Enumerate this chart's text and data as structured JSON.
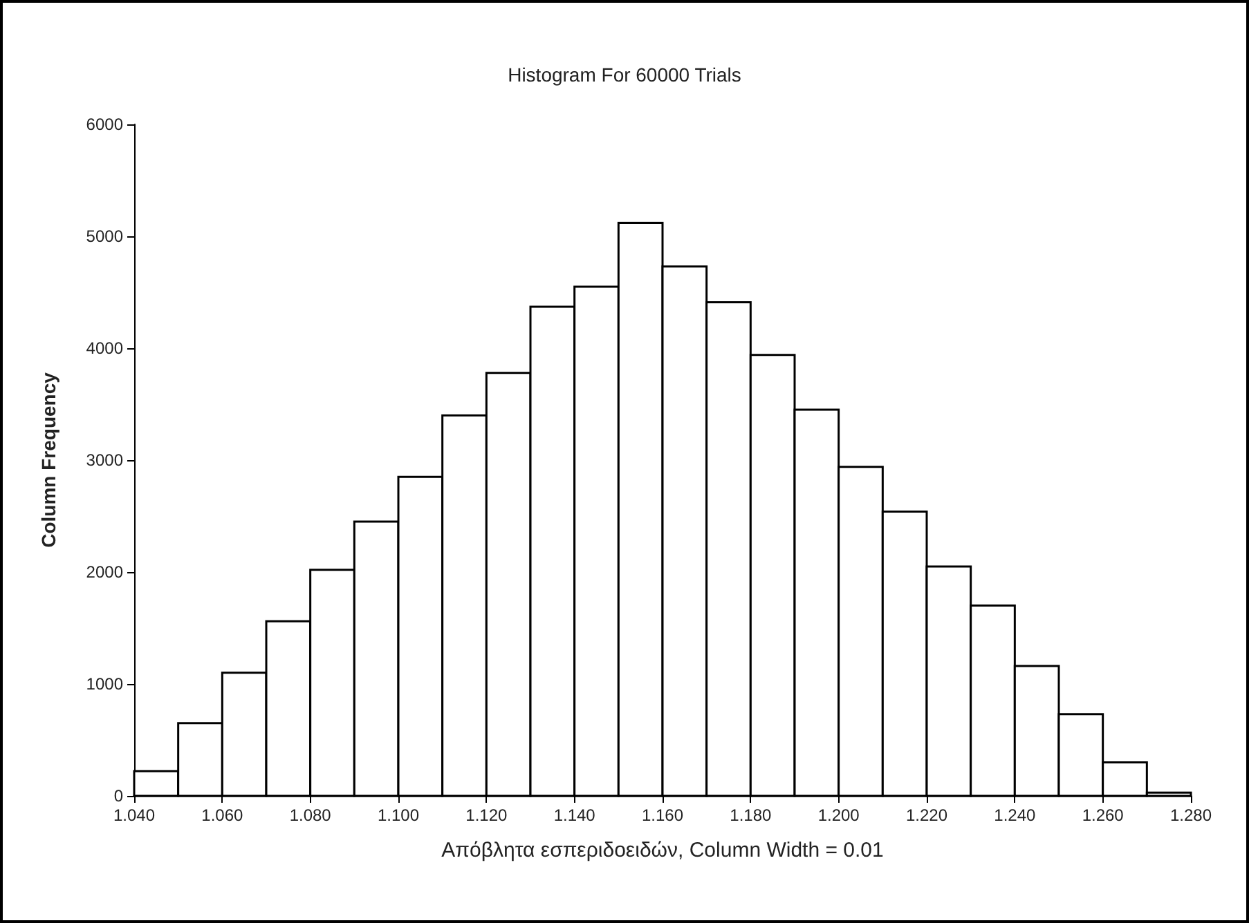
{
  "chart_data": {
    "type": "histogram",
    "title": "Histogram For 60000 Trials",
    "xlabel": "Απόβλητα εσπεριδοειδών, Column Width = 0.01",
    "ylabel": "Column Frequency",
    "bins": [
      1.04,
      1.05,
      1.06,
      1.07,
      1.08,
      1.09,
      1.1,
      1.11,
      1.12,
      1.13,
      1.14,
      1.15,
      1.16,
      1.17,
      1.18,
      1.19,
      1.2,
      1.21,
      1.22,
      1.23,
      1.24,
      1.25,
      1.26,
      1.27,
      1.28
    ],
    "values": [
      220,
      650,
      1100,
      1560,
      2020,
      2450,
      2850,
      3400,
      3780,
      4370,
      4550,
      5120,
      4730,
      4410,
      3940,
      3450,
      2940,
      2540,
      2050,
      1700,
      1160,
      730,
      300,
      30
    ],
    "color": "#ffffff",
    "xlim": [
      1.04,
      1.28
    ],
    "xticks": [
      {
        "value": 1.04,
        "label": "1.040"
      },
      {
        "value": 1.06,
        "label": "1.060"
      },
      {
        "value": 1.08,
        "label": "1.080"
      },
      {
        "value": 1.1,
        "label": "1.100"
      },
      {
        "value": 1.12,
        "label": "1.120"
      },
      {
        "value": 1.14,
        "label": "1.140"
      },
      {
        "value": 1.16,
        "label": "1.160"
      },
      {
        "value": 1.18,
        "label": "1.180"
      },
      {
        "value": 1.2,
        "label": "1.200"
      },
      {
        "value": 1.22,
        "label": "1.220"
      },
      {
        "value": 1.24,
        "label": "1.240"
      },
      {
        "value": 1.26,
        "label": "1.260"
      },
      {
        "value": 1.28,
        "label": "1.280"
      }
    ],
    "ylim": [
      0,
      6000
    ],
    "yticks": [
      0,
      1000,
      2000,
      3000,
      4000,
      5000,
      6000
    ],
    "grid": false
  }
}
